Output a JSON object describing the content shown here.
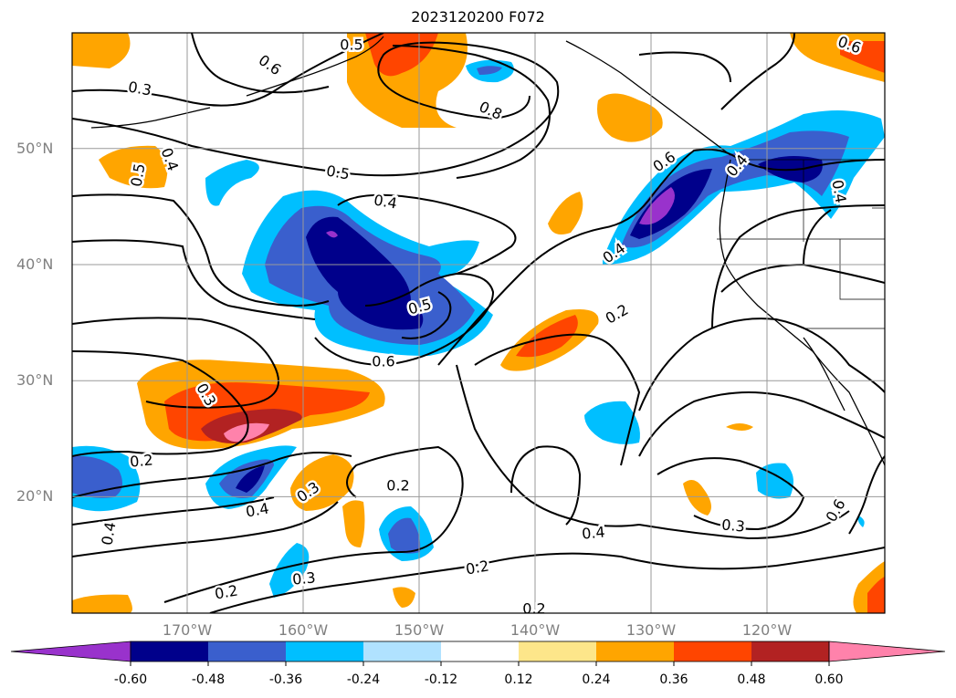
{
  "title": "2023120200 F072",
  "map": {
    "lat_labels": [
      {
        "text": "50°N",
        "lat": 50
      },
      {
        "text": "40°N",
        "lat": 40
      },
      {
        "text": "30°N",
        "lat": 30
      },
      {
        "text": "20°N",
        "lat": 20
      }
    ],
    "lon_labels": [
      {
        "text": "170°W",
        "lon": -170
      },
      {
        "text": "160°W",
        "lon": -160
      },
      {
        "text": "150°W",
        "lon": -150
      },
      {
        "text": "140°W",
        "lon": -140
      },
      {
        "text": "130°W",
        "lon": -130
      },
      {
        "text": "120°W",
        "lon": -120
      }
    ],
    "contour_labels": [
      "0.6",
      "0.3",
      "0.5",
      "0.6",
      "0.8",
      "0.5",
      "0.4",
      "0.5",
      "0.4",
      "0.5",
      "0.6",
      "0.4",
      "0.6",
      "0.4",
      "0.3",
      "0.2",
      "0.4",
      "0.3",
      "0.2",
      "0.4",
      "0.3",
      "0.2",
      "0.2",
      "0.4",
      "0.2",
      "0.3",
      "0.6",
      "0.4",
      "0.2"
    ]
  },
  "colorbar": {
    "colors": [
      "#9932cc",
      "#00008b",
      "#3a5fcd",
      "#00bfff",
      "#b0e2ff",
      "#ffffff",
      "#fde68a",
      "#ffa500",
      "#ff4500",
      "#b22222",
      "#ff82ab"
    ],
    "labels": [
      "-0.60",
      "-0.48",
      "-0.36",
      "-0.24",
      "-0.12",
      "0.12",
      "0.24",
      "0.36",
      "0.48",
      "0.60"
    ]
  }
}
